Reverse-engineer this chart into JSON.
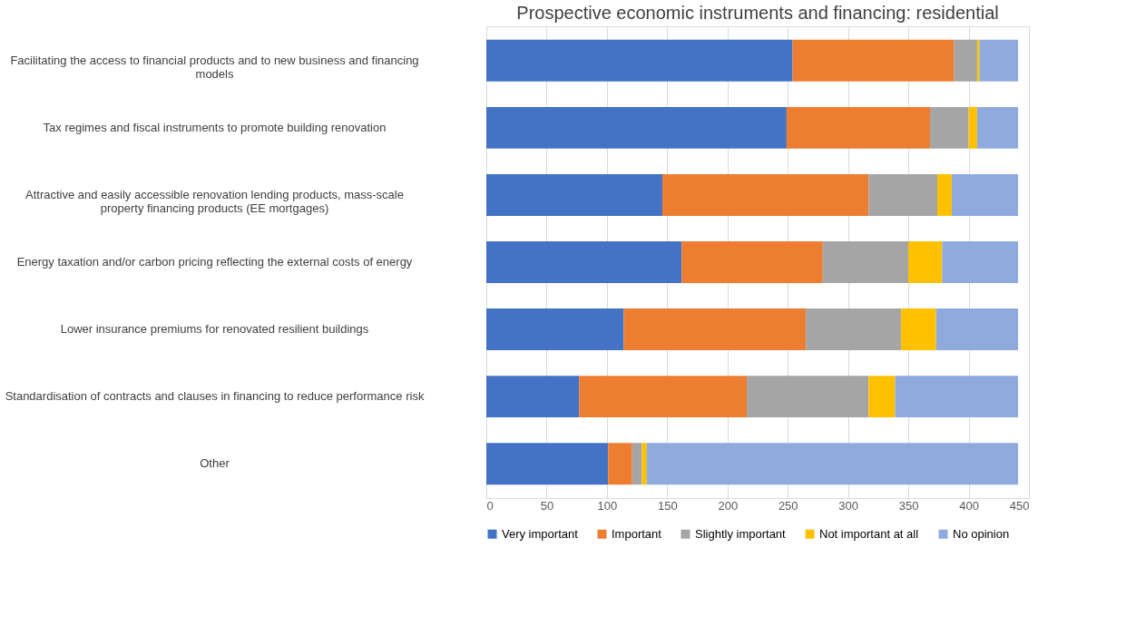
{
  "chart_data": {
    "type": "bar",
    "orientation": "horizontal",
    "stacked": true,
    "title": "Prospective economic instruments and financing: residential",
    "categories": [
      "Facilitating the access to financial products and to new business and financing models",
      "Tax regimes and fiscal instruments to promote building renovation",
      "Attractive and easily accessible renovation lending products, mass-scale property financing products (EE mortgages)",
      "Energy taxation and/or carbon pricing reflecting the external costs of energy",
      "Lower insurance premiums for renovated resilient buildings",
      "Standardisation of contracts and clauses in financing to reduce performance risk",
      "Other"
    ],
    "series": [
      {
        "name": "Very important",
        "color": "#4472c4",
        "values": [
          254,
          249,
          146,
          162,
          114,
          77,
          101
        ]
      },
      {
        "name": "Important",
        "color": "#ed7d31",
        "values": [
          134,
          119,
          171,
          117,
          151,
          139,
          20
        ]
      },
      {
        "name": "Slightly important",
        "color": "#a5a5a5",
        "values": [
          19,
          32,
          57,
          71,
          79,
          101,
          8
        ]
      },
      {
        "name": "Not important at all",
        "color": "#ffc000",
        "values": [
          2,
          7,
          12,
          28,
          29,
          22,
          4
        ]
      },
      {
        "name": "No opinion",
        "color": "#8faadc",
        "values": [
          32,
          34,
          55,
          63,
          68,
          102,
          308
        ]
      }
    ],
    "xlim": [
      0,
      450
    ],
    "xticks": [
      0,
      50,
      100,
      150,
      200,
      250,
      300,
      350,
      400,
      450
    ],
    "grid": "x",
    "legend": "bottom"
  }
}
